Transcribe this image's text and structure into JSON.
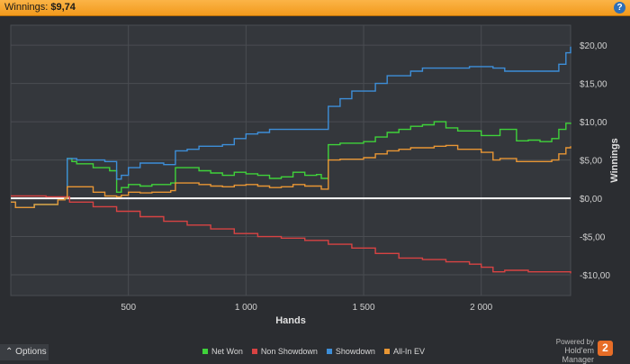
{
  "header": {
    "title_label": "Winnings:",
    "title_value": "$9,74",
    "help_icon": "help-icon"
  },
  "footer": {
    "options_label": "Options",
    "options_icon": "chevron-up-icon",
    "powered_line1": "Powered by",
    "powered_line2": "Hold'em Manager",
    "badge": "2"
  },
  "chart_data": {
    "type": "line",
    "xlabel": "Hands",
    "ylabel": "Winnings",
    "xlim": [
      0,
      2380
    ],
    "ylim": [
      -12.7,
      22.6
    ],
    "x_ticks": [
      500,
      1000,
      1500,
      2000
    ],
    "x_tick_labels": [
      "500",
      "1 000",
      "1 500",
      "2 000"
    ],
    "y_ticks": [
      -10,
      -5,
      0,
      5,
      10,
      15,
      20
    ],
    "y_tick_labels": [
      "-$10,00",
      "-$5,00",
      "$0,00",
      "$5,00",
      "$10,00",
      "$15,00",
      "$20,00"
    ],
    "grid": true,
    "legend_position": "bottom",
    "series": [
      {
        "name": "Net Won",
        "color": "#3fd23a",
        "x": [
          0,
          20,
          100,
          200,
          230,
          240,
          260,
          280,
          350,
          420,
          450,
          470,
          500,
          550,
          600,
          680,
          700,
          750,
          800,
          850,
          900,
          950,
          1000,
          1050,
          1100,
          1150,
          1200,
          1250,
          1300,
          1320,
          1350,
          1400,
          1500,
          1550,
          1600,
          1650,
          1700,
          1750,
          1800,
          1850,
          1900,
          2000,
          2080,
          2150,
          2200,
          2250,
          2300,
          2330,
          2360,
          2380
        ],
        "values": [
          -0.5,
          -1.2,
          -0.8,
          -0.2,
          0.0,
          5.2,
          4.8,
          4.5,
          4.0,
          3.6,
          0.8,
          1.4,
          1.8,
          1.6,
          1.8,
          2.0,
          4.0,
          4.0,
          3.6,
          3.3,
          3.0,
          3.4,
          3.2,
          3.0,
          2.6,
          2.8,
          3.4,
          3.0,
          3.1,
          2.6,
          7.0,
          7.2,
          7.4,
          8.0,
          8.6,
          9.0,
          9.4,
          9.6,
          10.0,
          9.2,
          8.8,
          8.2,
          9.0,
          7.5,
          7.6,
          7.4,
          7.8,
          9.0,
          9.8,
          9.7
        ]
      },
      {
        "name": "Non Showdown",
        "color": "#d84343",
        "x": [
          0,
          150,
          250,
          350,
          450,
          550,
          650,
          750,
          850,
          950,
          1050,
          1150,
          1250,
          1350,
          1450,
          1550,
          1650,
          1750,
          1850,
          1950,
          2000,
          2050,
          2100,
          2200,
          2300,
          2380
        ],
        "values": [
          0.3,
          0.2,
          -0.5,
          -1.1,
          -1.7,
          -2.4,
          -3.0,
          -3.5,
          -4.0,
          -4.6,
          -5.0,
          -5.2,
          -5.5,
          -6.0,
          -6.5,
          -7.2,
          -7.8,
          -8.0,
          -8.3,
          -8.6,
          -9.0,
          -9.6,
          -9.4,
          -9.6,
          -9.6,
          -9.8
        ]
      },
      {
        "name": "Showdown",
        "color": "#3d8ed8",
        "x": [
          0,
          20,
          100,
          200,
          230,
          240,
          260,
          280,
          350,
          400,
          450,
          470,
          500,
          550,
          600,
          650,
          700,
          750,
          800,
          900,
          950,
          1000,
          1050,
          1100,
          1200,
          1300,
          1320,
          1350,
          1400,
          1450,
          1500,
          1550,
          1600,
          1700,
          1750,
          1800,
          1900,
          1950,
          2000,
          2050,
          2100,
          2200,
          2300,
          2330,
          2360,
          2380
        ],
        "values": [
          -0.5,
          -1.2,
          -0.8,
          -0.2,
          0.0,
          5.2,
          5.2,
          5.0,
          5.0,
          4.8,
          2.5,
          3.0,
          4.0,
          4.6,
          4.6,
          4.4,
          6.2,
          6.4,
          6.8,
          7.0,
          7.8,
          8.4,
          8.6,
          9.0,
          9.0,
          9.0,
          9.0,
          12.0,
          13.0,
          14.0,
          14.0,
          15.0,
          16.0,
          16.6,
          17.0,
          17.0,
          17.0,
          17.2,
          17.2,
          17.0,
          16.6,
          16.6,
          16.6,
          17.5,
          19.0,
          19.8
        ]
      },
      {
        "name": "All-In EV",
        "color": "#e89634",
        "x": [
          0,
          20,
          100,
          200,
          230,
          240,
          260,
          350,
          400,
          450,
          470,
          500,
          550,
          600,
          680,
          700,
          750,
          800,
          850,
          900,
          950,
          1000,
          1050,
          1100,
          1150,
          1200,
          1250,
          1300,
          1320,
          1350,
          1400,
          1500,
          1550,
          1600,
          1650,
          1700,
          1800,
          1850,
          1900,
          2000,
          2050,
          2080,
          2150,
          2200,
          2300,
          2330,
          2360,
          2380
        ],
        "values": [
          -0.5,
          -1.2,
          -0.8,
          -0.2,
          0.0,
          1.5,
          1.5,
          0.8,
          0.3,
          0.2,
          0.4,
          0.8,
          0.7,
          0.8,
          1.0,
          2.0,
          2.0,
          1.8,
          1.6,
          1.5,
          1.7,
          1.8,
          1.6,
          1.4,
          1.5,
          1.8,
          1.6,
          1.6,
          1.2,
          5.0,
          5.1,
          5.3,
          5.8,
          6.2,
          6.4,
          6.6,
          6.8,
          6.9,
          6.4,
          6.0,
          5.0,
          5.2,
          4.8,
          4.8,
          5.0,
          5.8,
          6.6,
          6.8
        ]
      }
    ]
  }
}
